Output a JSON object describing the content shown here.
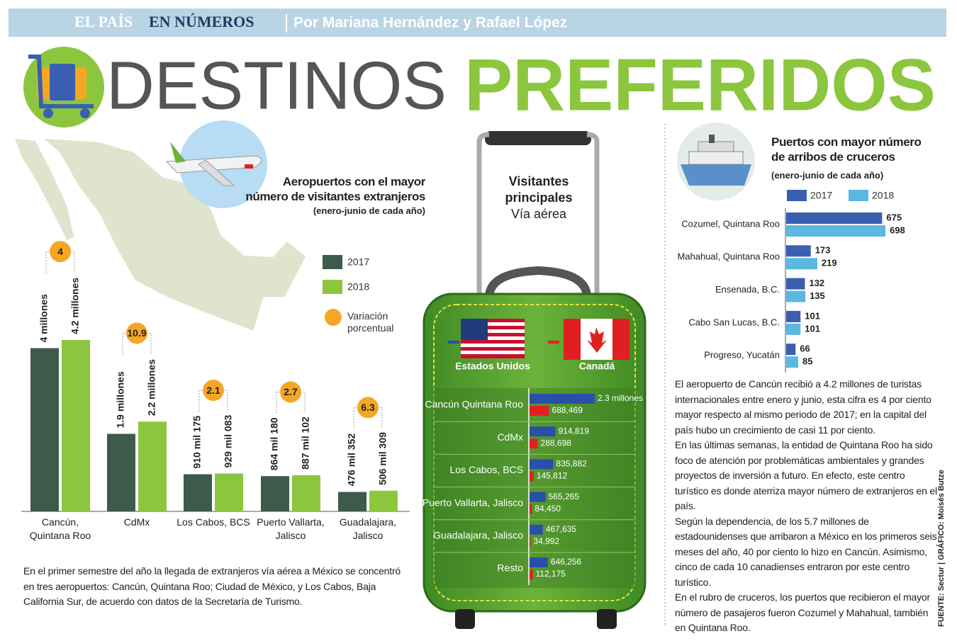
{
  "header": {
    "section_a": "EL PAÍS",
    "section_b": "EN NÚMEROS",
    "byline": "Por Mariana Hernández y Rafael López"
  },
  "title": {
    "a": "DESTINOS",
    "b": "PREFERIDOS"
  },
  "chart_data": [
    {
      "type": "bar",
      "title": "Aeropuertos con el mayor\nnúmero de visitantes extranjeros",
      "subtitle": "(enero-junio de cada año)",
      "categories": [
        "Cancún,\nQuintana Roo",
        "CdMx",
        "Los Cabos, BCS",
        "Puerto Vallarta,\nJalisco",
        "Guadalajara,\nJalisco"
      ],
      "series": [
        {
          "name": "2017",
          "color": "#3d5a4a",
          "values": [
            4000000,
            1900000,
            910175,
            864180,
            476352
          ],
          "value_labels": [
            "4 millones",
            "1.9 millones",
            "910 mil 175",
            "864 mil 180",
            "476 mil 352"
          ]
        },
        {
          "name": "2018",
          "color": "#8cc63f",
          "values": [
            4200000,
            2200000,
            929083,
            887102,
            506309
          ],
          "value_labels": [
            "4.2 millones",
            "2.2 millones",
            "929 mil 083",
            "887 mil 102",
            "506 mil 309"
          ]
        }
      ],
      "variation": {
        "name": "Variación porcentual",
        "color": "#f5a623",
        "values": [
          4,
          10.9,
          2.1,
          2.7,
          6.3
        ]
      }
    },
    {
      "type": "hbar",
      "title": "Visitantes\nprincipales",
      "subtitle": "Vía aérea",
      "categories": [
        "Cancún Quintana Roo",
        "CdMx",
        "Los Cabos, BCS",
        "Puerto Vallarta, Jalisco",
        "Guadalajara, Jalisco",
        "Resto"
      ],
      "series": [
        {
          "name": "Estados Unidos",
          "color": "#2a4fa8",
          "values": [
            2300000,
            914819,
            835882,
            565265,
            467635,
            646256
          ],
          "value_labels": [
            "2.3 millones",
            "914,819",
            "835,882",
            "565,265",
            "467,635",
            "646,256"
          ]
        },
        {
          "name": "Canadá",
          "color": "#e02020",
          "values": [
            688469,
            288698,
            145812,
            84450,
            34992,
            112175
          ],
          "value_labels": [
            "688,469",
            "288,698",
            "145,812",
            "84,450",
            "34,992",
            "112,175"
          ]
        }
      ]
    },
    {
      "type": "hbar",
      "title": "Puertos con mayor número\nde arribos de cruceros",
      "subtitle": "(enero-junio de cada año)",
      "categories": [
        "Cozumel, Quintana Roo",
        "Mahahual, Quintana Roo",
        "Ensenada, B.C.",
        "Cabo San Lucas, B.C.",
        "Progreso, Yucatán"
      ],
      "series": [
        {
          "name": "2017",
          "color": "#3a5fb0",
          "values": [
            675,
            173,
            132,
            101,
            66
          ]
        },
        {
          "name": "2018",
          "color": "#5bb8e0",
          "values": [
            698,
            219,
            135,
            101,
            85
          ]
        }
      ]
    }
  ],
  "text_left": "En el primer semestre del año la llegada de extranjeros vía aérea a México se concentró en tres aeropuertos: Cancún, Quintana Roo; Ciudad de México, y Los Cabos, Baja California Sur, de acuerdo con datos de la Secretaría de Turismo.",
  "text_right": [
    "El aeropuerto de Cancún recibió a 4.2 millones de turistas internacionales entre enero y junio, esta cifra es 4 por ciento mayor respecto al mismo periodo de 2017; en la capital del país hubo un crecimiento de casi 11 por ciento.",
    "En las últimas semanas, la entidad de Quintana Roo ha sido foco de atención por problemáticas ambientales y grandes proyectos de inversión a futuro. En efecto, este centro turístico es donde aterriza mayor número de extranjeros en el país.",
    "Según la dependencia, de los 5.7 millones de estadounidenses que arribaron a México en los primeros seis meses del año, 40 por ciento lo hizo en Cancún. Asimismo, cinco de cada 10 canadienses entraron por este centro turístico.",
    "En el rubro de cruceros, los puertos que recibieron el mayor número de pasajeros fueron Cozumel y  Mahahual, también en Quintana Roo."
  ],
  "source": "FUENTE: Sectur | GRÁFICO: Moisés Butze"
}
